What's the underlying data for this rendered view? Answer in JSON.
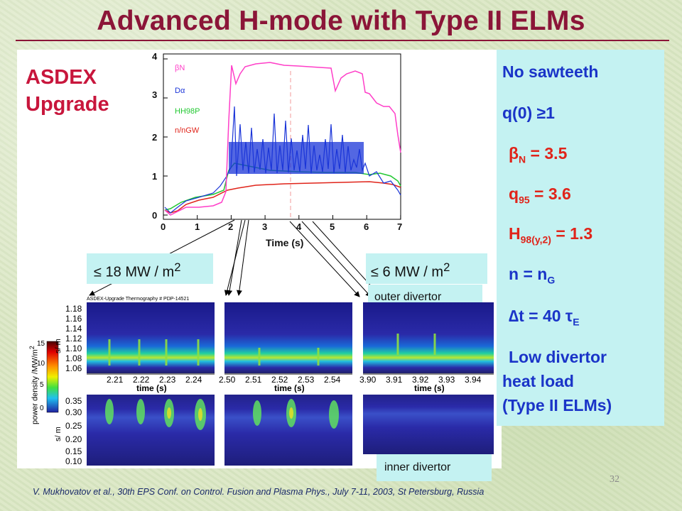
{
  "title": "Advanced H-mode with Type II ELMs",
  "device": {
    "line1": "ASDEX",
    "line2": "Upgrade"
  },
  "plot": {
    "legend": [
      "βN",
      "Dα",
      "HH98P",
      "n/nGW"
    ],
    "legend_colors": [
      "#ff3ec8",
      "#1a34d8",
      "#22c832",
      "#e0241a"
    ],
    "y_ticks": [
      "0",
      "1",
      "2",
      "3",
      "4"
    ],
    "x_ticks": [
      "0",
      "1",
      "2",
      "3",
      "4",
      "5",
      "6",
      "7"
    ],
    "xlabel": "Time (s)"
  },
  "callouts": {
    "left": "≤ 18 MW / m",
    "left_sup": "2",
    "right": "≤ 6 MW / m",
    "right_sup": "2",
    "outer": "outer divertor",
    "inner": "inner divertor"
  },
  "thermography": {
    "header": "ASDEX-Upgrade Thermography # PDP-14521",
    "yticks_top": [
      "1.18",
      "1.16",
      "1.14",
      "1.12",
      "1.10",
      "1.08",
      "1.06"
    ],
    "yticks_bottom": [
      "0.35",
      "0.30",
      "0.25",
      "0.20",
      "0.15",
      "0.10"
    ],
    "unit": "s/ m",
    "unit2": "s/ m",
    "colorbar_label": "power density /MW/m",
    "colorbar_sup": "2",
    "colorbar_ticks": [
      "15",
      "10",
      "5",
      "0"
    ],
    "time_label": "time (s)",
    "xticks_1": [
      "2.21",
      "2.22",
      "2.23",
      "2.24"
    ],
    "xticks_2": [
      "2.50",
      "2.51",
      "2.52",
      "2.53",
      "2.54"
    ],
    "xticks_3": [
      "3.90",
      "3.91",
      "3.92",
      "3.93",
      "3.94"
    ]
  },
  "summary": {
    "l1": "No sawteeth",
    "l2": "q(0) ≥1",
    "l3_sym": "β",
    "l3_sub": "N",
    "l3_val": " = 3.5",
    "l4_a": "q",
    "l4_sub": "95",
    "l4_val": " = 3.6",
    "l5_a": "H",
    "l5_sub": "98(y,2)",
    "l5_val": " = 1.3",
    "l6_a": "n = n",
    "l6_sub": "G",
    "l7_a": "∆t  = 40 ",
    "l7_tau": "τ",
    "l7_sub": "E",
    "l8": "Low divertor",
    "l9": "heat load",
    "l10": "(Type II ELMs)"
  },
  "page_number": "32",
  "footnote": "V. Mukhovatov et al., 30th EPS Conf. on Control. Fusion and Plasma Phys., July 7-11, 2003, St Petersburg, Russia"
}
